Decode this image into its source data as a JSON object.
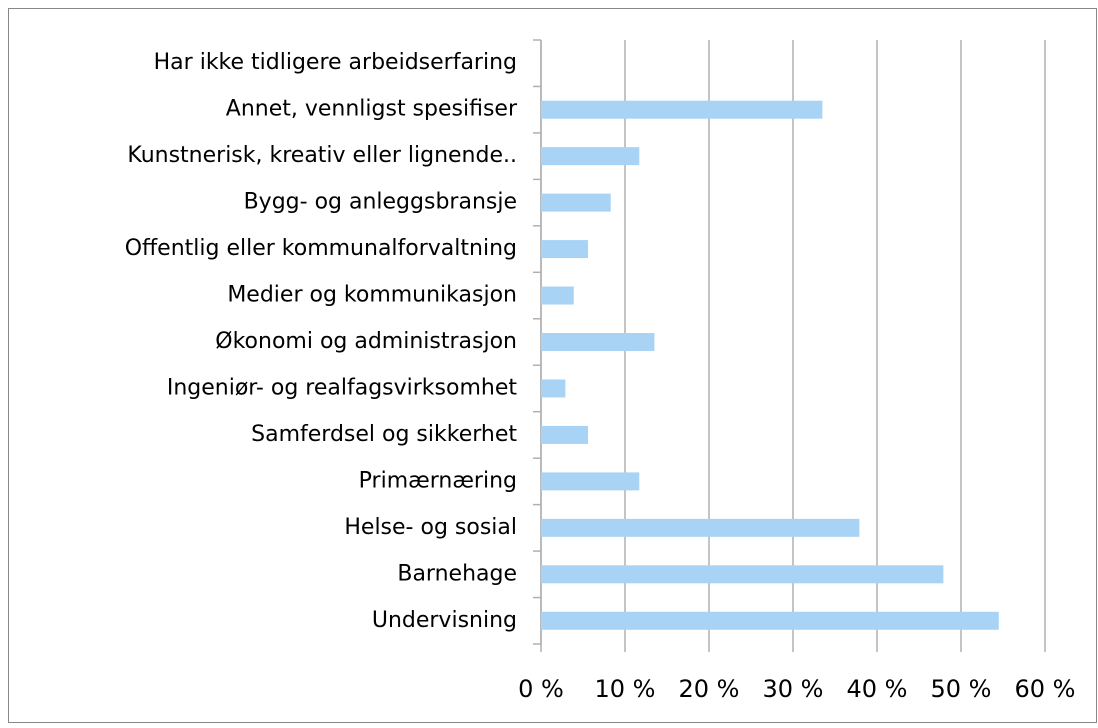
{
  "chart_data": {
    "type": "bar",
    "orientation": "horizontal",
    "categories": [
      "Har ikke tidligere arbeidserfaring",
      "Annet, vennligst spesifiser",
      "Kunstnerisk, kreativ eller lignende..",
      "Bygg- og anleggsbransje",
      "Offentlig eller kommunalforvaltning",
      "Medier og kommunikasjon",
      "Økonomi og administrasjon",
      "Ingeniør- og realfagsvirksomhet",
      "Samferdsel og sikkerhet",
      "Primærnæring",
      "Helse- og sosial",
      "Barnehage",
      "Undervisning"
    ],
    "values": [
      0,
      33.5,
      11.7,
      8.3,
      5.6,
      3.9,
      13.5,
      2.9,
      5.6,
      11.7,
      37.9,
      47.9,
      54.5
    ],
    "color": "#a9d3f5",
    "xlim": [
      0,
      60
    ],
    "xticks": [
      {
        "value": 0,
        "label": "0 %"
      },
      {
        "value": 10,
        "label": "10 %"
      },
      {
        "value": 20,
        "label": "20 %"
      },
      {
        "value": 30,
        "label": "30 %"
      },
      {
        "value": 40,
        "label": "40 %"
      },
      {
        "value": 50,
        "label": "50 %"
      },
      {
        "value": 60,
        "label": "60 %"
      }
    ],
    "grid": true
  }
}
